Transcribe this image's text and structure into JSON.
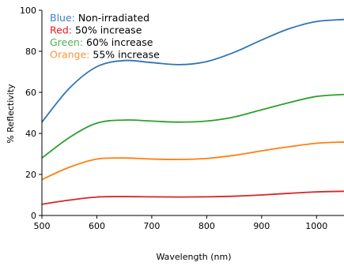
{
  "chart_data": {
    "type": "line",
    "xlabel": "Wavelength (nm)",
    "ylabel": "% Reflectivity",
    "xlim": [
      500,
      1050
    ],
    "ylim": [
      0,
      100
    ],
    "xticks": [
      500,
      600,
      700,
      800,
      900,
      1000
    ],
    "yticks": [
      0,
      20,
      40,
      60,
      80,
      100
    ],
    "grid": false,
    "legend_position": "top-left",
    "legend": [
      {
        "color_word": "Blue",
        "color": "#3e82c0",
        "text": " Non-irradiated"
      },
      {
        "color_word": "Red",
        "color": "#e4181c",
        "text": " 50% increase"
      },
      {
        "color_word": "Green",
        "color": "#4eb050",
        "text": " 60% increase"
      },
      {
        "color_word": "Orange",
        "color": "#f6963a",
        "text": " 55% increase"
      }
    ],
    "x": [
      500,
      550,
      600,
      650,
      700,
      750,
      800,
      850,
      900,
      950,
      1000,
      1050
    ],
    "series": [
      {
        "color": "#2f75b5",
        "values": [
          45.5,
          62,
          72.5,
          75.5,
          74.5,
          73.5,
          75,
          79.5,
          85.5,
          91,
          94.5,
          95.5
        ]
      },
      {
        "color": "#d62728",
        "values": [
          5.5,
          7.5,
          9,
          9.2,
          9.1,
          9,
          9.1,
          9.4,
          10,
          10.8,
          11.5,
          11.8
        ]
      },
      {
        "color": "#2ca02c",
        "values": [
          28,
          38,
          45,
          46.5,
          46,
          45.5,
          46,
          48,
          51.5,
          55,
          58,
          59
        ]
      },
      {
        "color": "#ff7f0e",
        "values": [
          17.5,
          23.5,
          27.5,
          28,
          27.5,
          27.3,
          27.8,
          29.3,
          31.5,
          33.5,
          35.2,
          35.8
        ]
      }
    ]
  }
}
